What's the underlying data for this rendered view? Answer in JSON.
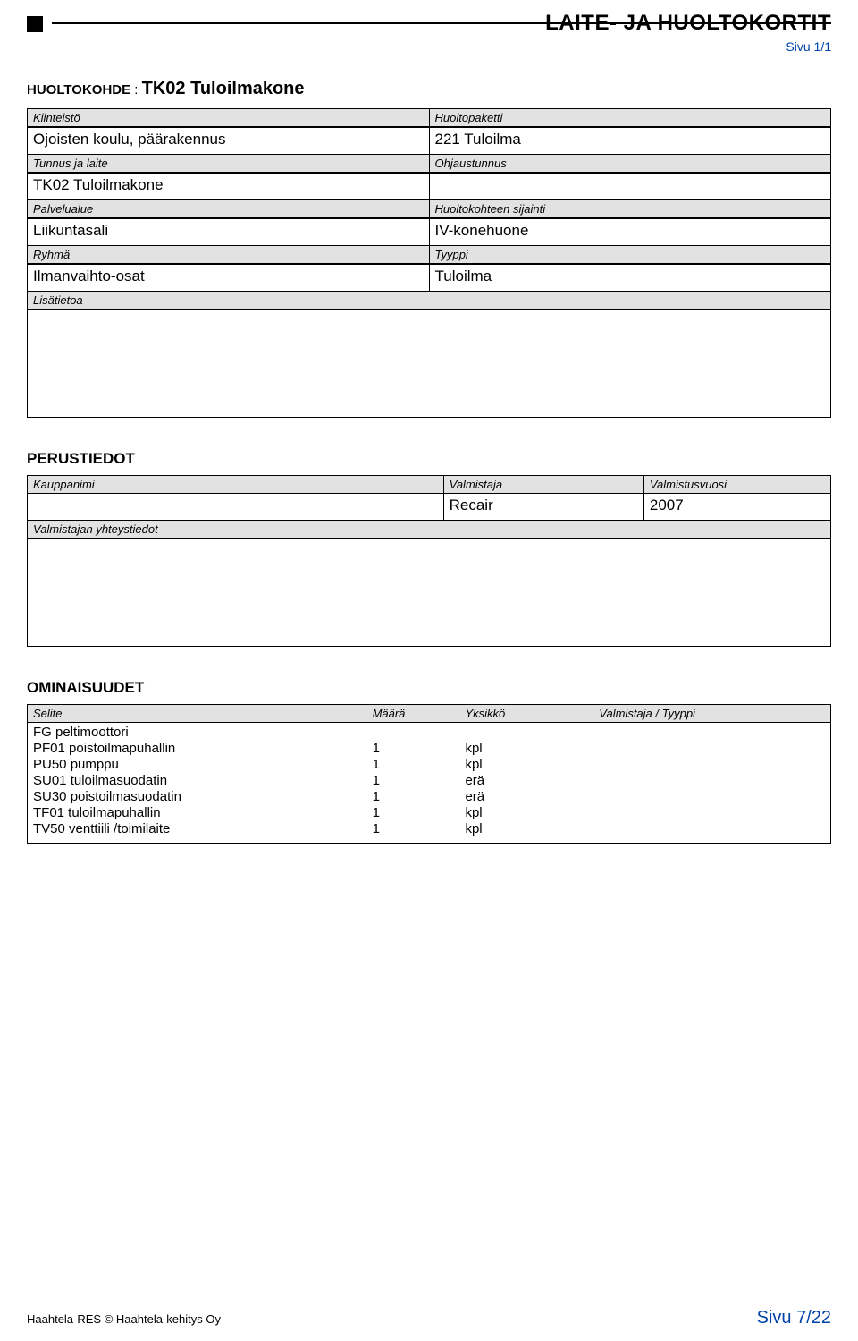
{
  "header": {
    "title": "LAITE- JA HUOLTOKORTIT",
    "page_label": "Sivu 1/1"
  },
  "kohde": {
    "label": "HUOLTOKOHDE",
    "sep": ":",
    "value": "TK02 Tuloilmakone"
  },
  "info_box": {
    "rows": [
      {
        "l_label": "Kiinteistö",
        "l_value": "Ojoisten koulu, päärakennus",
        "r_label": "Huoltopaketti",
        "r_value": "221 Tuloilma"
      },
      {
        "l_label": "Tunnus ja laite",
        "l_value": "TK02 Tuloilmakone",
        "r_label": "Ohjaustunnus",
        "r_value": ""
      },
      {
        "l_label": "Palvelualue",
        "l_value": "Liikuntasali",
        "r_label": "Huoltokohteen sijainti",
        "r_value": "IV-konehuone"
      },
      {
        "l_label": "Ryhmä",
        "l_value": "Ilmanvaihto-osat",
        "r_label": "Tyyppi",
        "r_value": "Tuloilma"
      }
    ],
    "lisatietoa_label": "Lisätietoa"
  },
  "perustiedot": {
    "title": "PERUSTIEDOT",
    "headers": {
      "c1": "Kauppanimi",
      "c2": "Valmistaja",
      "c3": "Valmistusvuosi"
    },
    "values": {
      "c1": "",
      "c2": "Recair",
      "c3": "2007"
    },
    "yhteys_label": "Valmistajan yhteystiedot"
  },
  "ominaisuudet": {
    "title": "OMINAISUUDET",
    "headers": {
      "c1": "Selite",
      "c2": "Määrä",
      "c3": "Yksikkö",
      "c4": "Valmistaja / Tyyppi"
    },
    "rows": [
      {
        "selite": "FG peltimoottori",
        "maara": "",
        "yksikko": "",
        "vt": ""
      },
      {
        "selite": "PF01 poistoilmapuhallin",
        "maara": "1",
        "yksikko": "kpl",
        "vt": ""
      },
      {
        "selite": "PU50 pumppu",
        "maara": "1",
        "yksikko": "kpl",
        "vt": ""
      },
      {
        "selite": "SU01 tuloilmasuodatin",
        "maara": "1",
        "yksikko": "erä",
        "vt": ""
      },
      {
        "selite": "SU30 poistoilmasuodatin",
        "maara": "1",
        "yksikko": "erä",
        "vt": ""
      },
      {
        "selite": "TF01 tuloilmapuhallin",
        "maara": "1",
        "yksikko": "kpl",
        "vt": ""
      },
      {
        "selite": "TV50 venttiili /toimilaite",
        "maara": "1",
        "yksikko": "kpl",
        "vt": ""
      }
    ]
  },
  "footer": {
    "left": "Haahtela-RES © Haahtela-kehitys Oy",
    "right": "Sivu 7/22"
  }
}
